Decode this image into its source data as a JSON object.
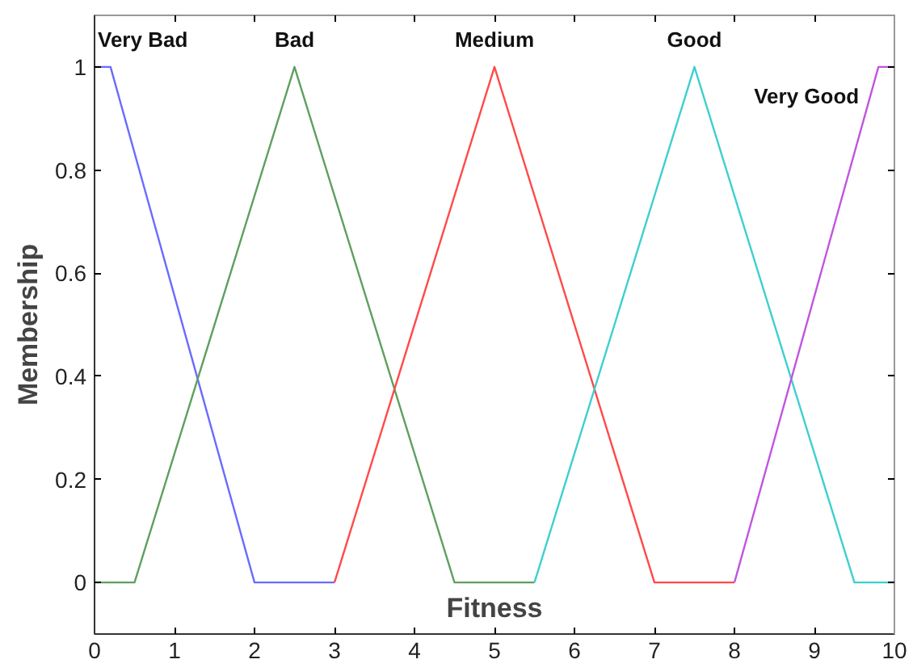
{
  "chart_data": {
    "type": "line",
    "xlabel": "Fitness",
    "ylabel": "Membership",
    "series": [
      {
        "name": "Very Bad",
        "color": "#6b6bff",
        "x": [
          0,
          0.2,
          2,
          3
        ],
        "values": [
          1,
          1,
          0,
          0
        ]
      },
      {
        "name": "Bad",
        "color": "#5f9f5f",
        "x": [
          0,
          0.5,
          2.5,
          4.5,
          5.5
        ],
        "values": [
          0,
          0,
          1,
          0,
          0
        ]
      },
      {
        "name": "Medium",
        "color": "#ff4a4a",
        "x": [
          3,
          5,
          7,
          8
        ],
        "values": [
          0,
          1,
          0,
          0
        ]
      },
      {
        "name": "Good",
        "color": "#3fcfcf",
        "x": [
          5.5,
          7.5,
          9.5,
          10
        ],
        "values": [
          0,
          1,
          0,
          0
        ]
      },
      {
        "name": "Very Good",
        "color": "#c155e0",
        "x": [
          8,
          9.8,
          10
        ],
        "values": [
          0,
          1,
          1
        ]
      }
    ],
    "xlim": [
      0,
      10
    ],
    "ylim": [
      -0.1,
      1.1
    ],
    "xticks": [
      0,
      1,
      2,
      3,
      4,
      5,
      6,
      7,
      8,
      9,
      10
    ],
    "yticks": [
      0,
      0.2,
      0.4,
      0.6,
      0.8,
      1
    ],
    "grid": false,
    "marker": "none",
    "line_style": "solid"
  }
}
